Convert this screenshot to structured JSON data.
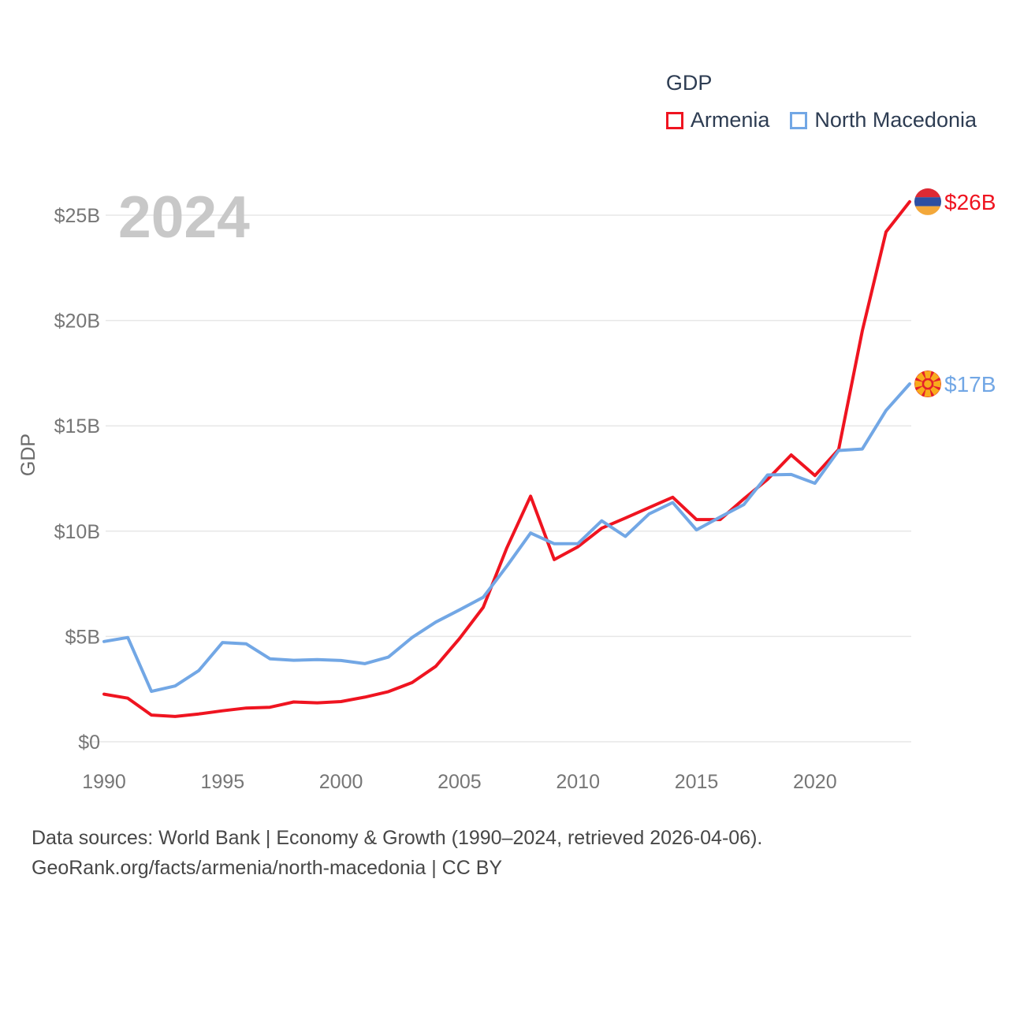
{
  "legend": {
    "title": "GDP",
    "items": [
      {
        "label": "Armenia",
        "color": "#ef1420"
      },
      {
        "label": "North Macedonia",
        "color": "#72a7e5"
      }
    ]
  },
  "watermark": "2024",
  "axis": {
    "y_label": "GDP",
    "y_ticks": [
      "$0",
      "$5B",
      "$10B",
      "$15B",
      "$20B",
      "$25B"
    ],
    "y_tick_values": [
      0,
      5,
      10,
      15,
      20,
      25
    ],
    "x_ticks": [
      1990,
      1995,
      2000,
      2005,
      2010,
      2015,
      2020
    ]
  },
  "chart_data": {
    "type": "line",
    "title": "GDP",
    "xlabel": "",
    "ylabel": "GDP",
    "xlim": [
      1990,
      2024
    ],
    "ylim": [
      0,
      27
    ],
    "grid": true,
    "legend_position": "top-right",
    "x": [
      1990,
      1991,
      1992,
      1993,
      1994,
      1995,
      1996,
      1997,
      1998,
      1999,
      2000,
      2001,
      2002,
      2003,
      2004,
      2005,
      2006,
      2007,
      2008,
      2009,
      2010,
      2011,
      2012,
      2013,
      2014,
      2015,
      2016,
      2017,
      2018,
      2019,
      2020,
      2021,
      2022,
      2023,
      2024
    ],
    "series": [
      {
        "name": "Armenia",
        "color": "#ef1420",
        "flag": "armenia",
        "end_label": "$26B",
        "values": [
          2.26,
          2.07,
          1.27,
          1.2,
          1.32,
          1.47,
          1.6,
          1.64,
          1.89,
          1.85,
          1.91,
          2.12,
          2.38,
          2.81,
          3.58,
          4.9,
          6.38,
          9.21,
          11.66,
          8.65,
          9.26,
          10.14,
          10.62,
          11.12,
          11.61,
          10.55,
          10.55,
          11.53,
          12.46,
          13.62,
          12.64,
          13.88,
          19.51,
          24.21,
          25.64
        ]
      },
      {
        "name": "North Macedonia",
        "color": "#72a7e5",
        "flag": "north_macedonia",
        "end_label": "$17B",
        "values": [
          4.76,
          4.95,
          2.39,
          2.65,
          3.38,
          4.71,
          4.65,
          3.94,
          3.87,
          3.9,
          3.86,
          3.71,
          4.02,
          4.95,
          5.68,
          6.26,
          6.86,
          8.34,
          9.91,
          9.4,
          9.41,
          10.49,
          9.75,
          10.82,
          11.36,
          10.06,
          10.67,
          11.26,
          12.67,
          12.69,
          12.27,
          13.83,
          13.9,
          15.73,
          16.99
        ]
      }
    ]
  },
  "flags": {
    "armenia": {
      "stripes": [
        "#dd2a35",
        "#2d4fa2",
        "#f3a83a"
      ]
    },
    "north_macedonia": {
      "bg": "#e4202a",
      "sun": "#f8ab1c"
    }
  },
  "style": {
    "gridline_color": "#e7e7e7",
    "tick_color": "#767676",
    "axis_title_color": "#6a6a6a",
    "watermark_color": "#c8c8c8",
    "line_width": 4
  },
  "footer": {
    "line1": "Data sources: World Bank | Economy & Growth (1990–2024, retrieved 2026-04-06).",
    "line2": "GeoRank.org/facts/armenia/north-macedonia | CC BY"
  }
}
